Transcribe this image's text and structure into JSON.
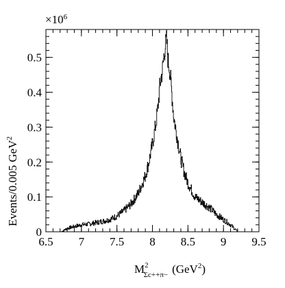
{
  "chart_data": {
    "type": "line",
    "style": "histogram",
    "xlabel": {
      "main": "M",
      "superscript": "2",
      "subscript": "Σc++π−",
      "unit": "(GeV",
      "unit_sup": "2",
      "unit_close": ")"
    },
    "ylabel": {
      "main": "Events/0.005 GeV",
      "sup": "2"
    },
    "y_multiplier": {
      "base": "×10",
      "exp": "6"
    },
    "xlim": [
      6.5,
      9.5
    ],
    "ylim": [
      0,
      0.58
    ],
    "x_ticks": [
      "6.5",
      "7",
      "7.5",
      "8",
      "8.5",
      "9",
      "9.5"
    ],
    "y_ticks": [
      "0",
      "0.1",
      "0.2",
      "0.3",
      "0.4",
      "0.5"
    ],
    "grid": false,
    "legend": "none",
    "series": [
      {
        "x": [
          6.72,
          6.8,
          6.9,
          7.0,
          7.1,
          7.2,
          7.3,
          7.4,
          7.5,
          7.6,
          7.7,
          7.75,
          7.8,
          7.85,
          7.9,
          7.95,
          8.0,
          8.05,
          8.08,
          8.1,
          8.12,
          8.14,
          8.16,
          8.18,
          8.2,
          8.22,
          8.24,
          8.26,
          8.28,
          8.3,
          8.35,
          8.4,
          8.45,
          8.5,
          8.55,
          8.6,
          8.7,
          8.8,
          8.9,
          9.0,
          9.05,
          9.1,
          9.15,
          9.2
        ],
        "values": [
          0.0,
          0.01,
          0.015,
          0.02,
          0.022,
          0.026,
          0.03,
          0.035,
          0.045,
          0.06,
          0.08,
          0.095,
          0.11,
          0.135,
          0.16,
          0.2,
          0.25,
          0.31,
          0.36,
          0.41,
          0.44,
          0.46,
          0.5,
          0.53,
          0.55,
          0.49,
          0.47,
          0.43,
          0.38,
          0.33,
          0.27,
          0.21,
          0.17,
          0.14,
          0.12,
          0.1,
          0.085,
          0.07,
          0.05,
          0.035,
          0.028,
          0.02,
          0.01,
          0.0
        ]
      }
    ]
  }
}
